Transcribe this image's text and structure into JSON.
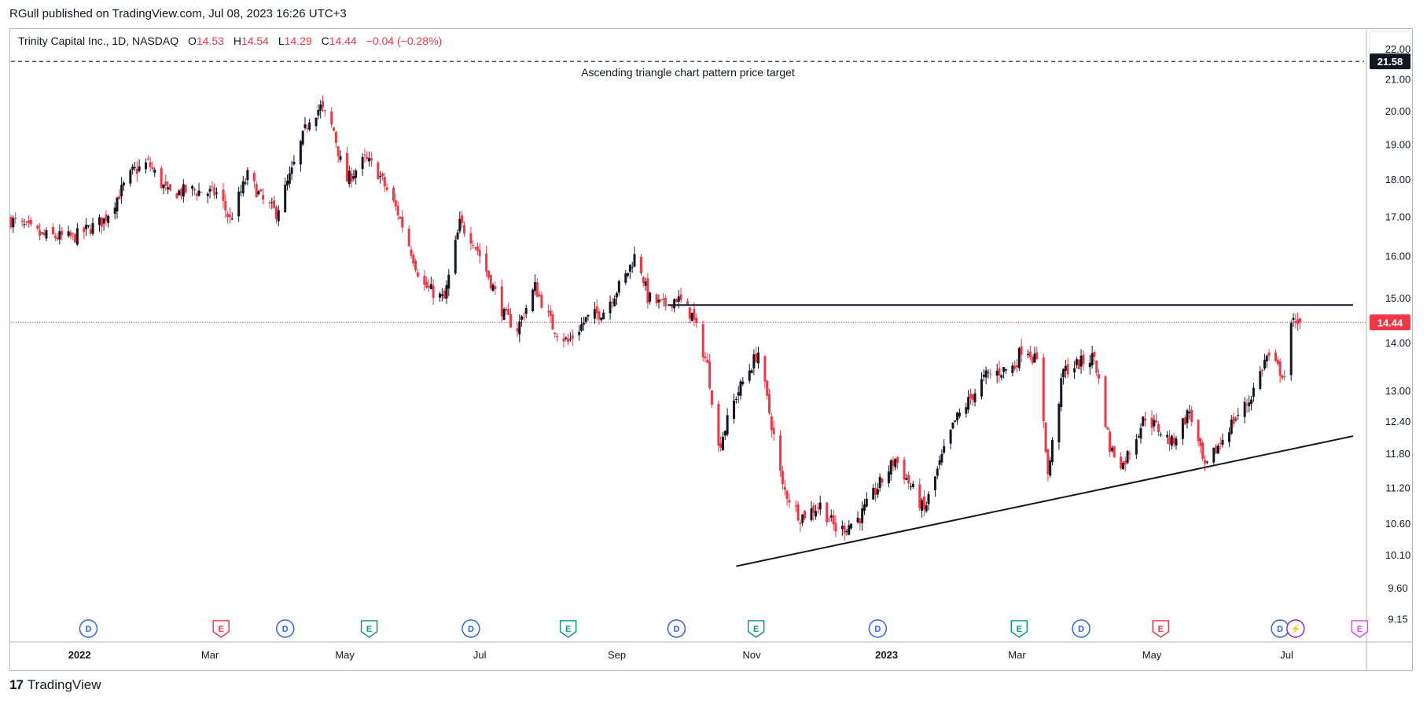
{
  "header": {
    "published": "RGull published on TradingView.com, Jul 08, 2023 16:26 UTC+3"
  },
  "legend": {
    "symbol": "Trinity Capital Inc., 1D, NASDAQ",
    "o_label": "O",
    "o": "14.53",
    "h_label": "H",
    "h": "14.54",
    "l_label": "L",
    "l": "14.29",
    "c_label": "C",
    "c": "14.44",
    "change": "−0.04 (−0.28%)"
  },
  "footer": {
    "brand": "TradingView"
  },
  "chart_data": {
    "type": "candlestick",
    "title": "",
    "y_scale": "log",
    "ylim": [
      8.85,
      22.6
    ],
    "y_ticks": [
      "22.00",
      "21.00",
      "20.00",
      "19.00",
      "18.00",
      "17.00",
      "16.00",
      "15.00",
      "14.00",
      "13.00",
      "12.40",
      "11.80",
      "11.20",
      "10.60",
      "10.10",
      "9.60",
      "9.15"
    ],
    "x_range": [
      "2021-12-01",
      "2023-08-05"
    ],
    "x_ticks": [
      {
        "date": "2022-01-01",
        "label": "2022",
        "bold": true
      },
      {
        "date": "2022-03-01",
        "label": "Mar"
      },
      {
        "date": "2022-05-01",
        "label": "May"
      },
      {
        "date": "2022-07-01",
        "label": "Jul"
      },
      {
        "date": "2022-09-01",
        "label": "Sep"
      },
      {
        "date": "2022-11-01",
        "label": "Nov"
      },
      {
        "date": "2023-01-01",
        "label": "2023",
        "bold": true
      },
      {
        "date": "2023-03-01",
        "label": "Mar"
      },
      {
        "date": "2023-05-01",
        "label": "May"
      },
      {
        "date": "2023-07-01",
        "label": "Jul"
      }
    ],
    "last_price": "14.44",
    "target_price": "21.58",
    "colors": {
      "up": "#131722",
      "down": "#f23645",
      "price_line": "#f23645"
    },
    "annotation": "Ascending triangle chart pattern price target",
    "lines": [
      {
        "name": "target-line",
        "style": "dashed",
        "from": [
          "2021-12-01",
          21.58
        ],
        "to": [
          "2023-08-05",
          21.58
        ]
      },
      {
        "name": "resistance-line",
        "style": "solid",
        "from": [
          "2022-09-24",
          14.83
        ],
        "to": [
          "2023-07-31",
          14.83
        ]
      },
      {
        "name": "support-line",
        "style": "solid",
        "from": [
          "2022-10-25",
          9.92
        ],
        "to": [
          "2023-07-31",
          12.12
        ]
      }
    ],
    "events": [
      {
        "date": "2022-01-05",
        "type": "D",
        "color": "#2962ff"
      },
      {
        "date": "2022-03-06",
        "type": "E",
        "color": "#f23645"
      },
      {
        "date": "2022-04-04",
        "type": "D",
        "color": "#2962ff"
      },
      {
        "date": "2022-05-12",
        "type": "E",
        "color": "#089981"
      },
      {
        "date": "2022-06-27",
        "type": "D",
        "color": "#2962ff"
      },
      {
        "date": "2022-08-10",
        "type": "E",
        "color": "#089981"
      },
      {
        "date": "2022-09-28",
        "type": "D",
        "color": "#2962ff"
      },
      {
        "date": "2022-11-03",
        "type": "E",
        "color": "#089981"
      },
      {
        "date": "2022-12-28",
        "type": "D",
        "color": "#2962ff"
      },
      {
        "date": "2023-03-02",
        "type": "E",
        "color": "#089981"
      },
      {
        "date": "2023-03-30",
        "type": "D",
        "color": "#2962ff"
      },
      {
        "date": "2023-05-05",
        "type": "E",
        "color": "#f23645"
      },
      {
        "date": "2023-06-28",
        "type": "D",
        "color": "#2962ff"
      },
      {
        "date": "2023-07-05",
        "type": "⚡",
        "color": "#9c27b0"
      },
      {
        "date": "2023-08-03",
        "type": "E",
        "color": "#e040fb"
      }
    ],
    "path": [
      [
        "2021-12-01",
        16.9
      ],
      [
        "2021-12-15",
        16.5
      ],
      [
        "2021-12-29",
        16.45
      ],
      [
        "2022-01-12",
        16.9
      ],
      [
        "2022-01-25",
        18.2
      ],
      [
        "2022-02-01",
        18.45
      ],
      [
        "2022-02-10",
        17.6
      ],
      [
        "2022-02-20",
        17.7
      ],
      [
        "2022-03-05",
        17.6
      ],
      [
        "2022-03-10",
        16.9
      ],
      [
        "2022-03-18",
        18.1
      ],
      [
        "2022-03-25",
        17.4
      ],
      [
        "2022-03-31",
        17.1
      ],
      [
        "2022-04-07",
        18.2
      ],
      [
        "2022-04-15",
        19.8
      ],
      [
        "2022-04-20",
        20.1
      ],
      [
        "2022-04-26",
        19.4
      ],
      [
        "2022-05-01",
        17.9
      ],
      [
        "2022-05-10",
        18.55
      ],
      [
        "2022-05-15",
        18.3
      ],
      [
        "2022-05-25",
        17.1
      ],
      [
        "2022-06-05",
        15.3
      ],
      [
        "2022-06-15",
        14.95
      ],
      [
        "2022-06-22",
        16.8
      ],
      [
        "2022-06-28",
        16.4
      ],
      [
        "2022-07-05",
        15.5
      ],
      [
        "2022-07-12",
        14.6
      ],
      [
        "2022-07-18",
        14.3
      ],
      [
        "2022-07-26",
        15.25
      ],
      [
        "2022-08-03",
        14.35
      ],
      [
        "2022-08-10",
        14.0
      ],
      [
        "2022-08-18",
        14.5
      ],
      [
        "2022-08-26",
        14.7
      ],
      [
        "2022-09-05",
        15.5
      ],
      [
        "2022-09-10",
        16.1
      ],
      [
        "2022-09-15",
        15.0
      ],
      [
        "2022-09-22",
        14.8
      ],
      [
        "2022-09-28",
        15.0
      ],
      [
        "2022-10-05",
        14.6
      ],
      [
        "2022-10-12",
        13.5
      ],
      [
        "2022-10-17",
        11.9
      ],
      [
        "2022-10-25",
        12.9
      ],
      [
        "2022-11-04",
        13.8
      ],
      [
        "2022-11-08",
        12.8
      ],
      [
        "2022-11-15",
        11.2
      ],
      [
        "2022-11-23",
        10.7
      ],
      [
        "2022-12-02",
        10.9
      ],
      [
        "2022-12-10",
        10.45
      ],
      [
        "2022-12-20",
        10.7
      ],
      [
        "2023-01-05",
        11.7
      ],
      [
        "2023-01-18",
        10.8
      ],
      [
        "2023-02-01",
        12.4
      ],
      [
        "2023-02-15",
        13.3
      ],
      [
        "2023-02-28",
        13.5
      ],
      [
        "2023-03-04",
        14.0
      ],
      [
        "2023-03-08",
        13.7
      ],
      [
        "2023-03-11",
        13.5
      ],
      [
        "2023-03-15",
        11.4
      ],
      [
        "2023-03-22",
        13.4
      ],
      [
        "2023-04-05",
        13.7
      ],
      [
        "2023-04-12",
        11.9
      ],
      [
        "2023-04-18",
        11.6
      ],
      [
        "2023-04-28",
        12.5
      ],
      [
        "2023-05-10",
        12.0
      ],
      [
        "2023-05-18",
        12.6
      ],
      [
        "2023-05-25",
        11.5
      ],
      [
        "2023-06-05",
        12.3
      ],
      [
        "2023-06-14",
        12.8
      ],
      [
        "2023-06-22",
        13.7
      ],
      [
        "2023-06-30",
        13.3
      ],
      [
        "2023-07-03",
        14.3
      ],
      [
        "2023-07-05",
        14.55
      ],
      [
        "2023-07-07",
        14.44
      ]
    ]
  }
}
